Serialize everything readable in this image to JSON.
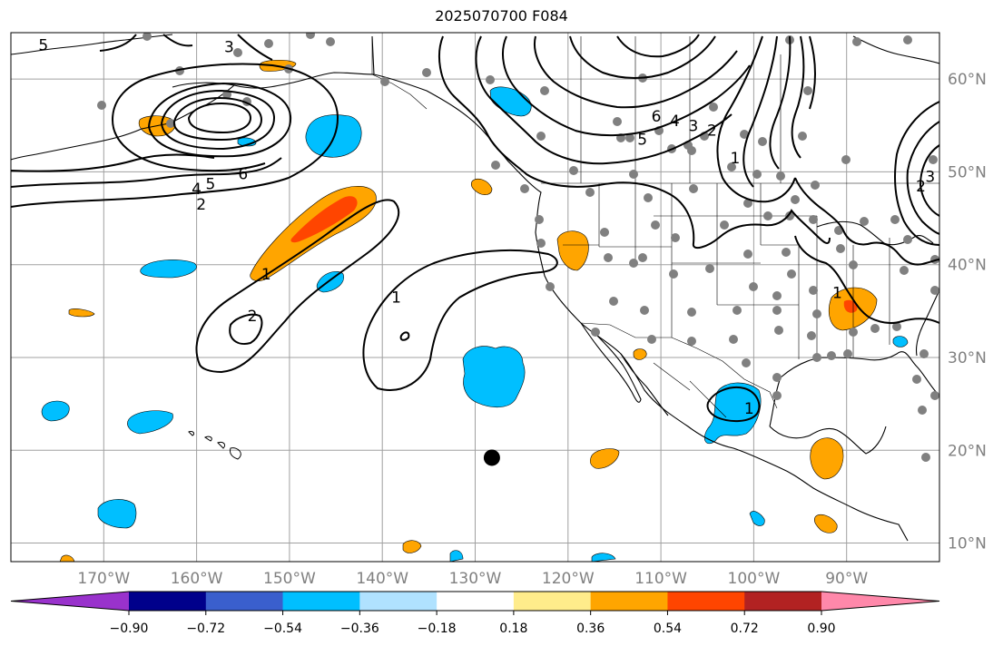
{
  "title": "2025070700 F084",
  "map": {
    "lon_min": -180,
    "lon_max": -80,
    "lat_min": 8,
    "lat_max": 65,
    "lon_ticks": [
      {
        "lon": -170,
        "label": "170°W"
      },
      {
        "lon": -160,
        "label": "160°W"
      },
      {
        "lon": -150,
        "label": "150°W"
      },
      {
        "lon": -140,
        "label": "140°W"
      },
      {
        "lon": -130,
        "label": "130°W"
      },
      {
        "lon": -120,
        "label": "120°W"
      },
      {
        "lon": -110,
        "label": "110°W"
      },
      {
        "lon": -100,
        "label": "100°W"
      },
      {
        "lon": -90,
        "label": "90°W"
      }
    ],
    "lat_ticks": [
      {
        "lat": 60,
        "label": "60°N"
      },
      {
        "lat": 50,
        "label": "50°N"
      },
      {
        "lat": 40,
        "label": "40°N"
      },
      {
        "lat": 30,
        "label": "30°N"
      },
      {
        "lat": 20,
        "label": "20°N"
      },
      {
        "lat": 10,
        "label": "10°N"
      }
    ],
    "grid": true,
    "contour_labels": [
      {
        "text": "5",
        "lon": -176.5,
        "lat": 63.7
      },
      {
        "text": "3",
        "lon": -156.5,
        "lat": 63.5
      },
      {
        "text": "6",
        "lon": -155,
        "lat": 49.8
      },
      {
        "text": "5",
        "lon": -158.5,
        "lat": 48.7
      },
      {
        "text": "4",
        "lon": -160,
        "lat": 48.2
      },
      {
        "text": "2",
        "lon": -159.5,
        "lat": 46.5
      },
      {
        "text": "1",
        "lon": -152.5,
        "lat": 39
      },
      {
        "text": "2",
        "lon": -154,
        "lat": 34.5
      },
      {
        "text": "1",
        "lon": -138.5,
        "lat": 36.5
      },
      {
        "text": "6",
        "lon": -110.5,
        "lat": 56
      },
      {
        "text": "5",
        "lon": -112,
        "lat": 53.5
      },
      {
        "text": "4",
        "lon": -108.5,
        "lat": 55.5
      },
      {
        "text": "3",
        "lon": -106.5,
        "lat": 55
      },
      {
        "text": "2",
        "lon": -104.5,
        "lat": 54.5
      },
      {
        "text": "1",
        "lon": -102,
        "lat": 51.5
      },
      {
        "text": "2",
        "lon": -82,
        "lat": 48.5
      },
      {
        "text": "3",
        "lon": -81,
        "lat": 49.5
      },
      {
        "text": "1",
        "lon": -91,
        "lat": 37
      },
      {
        "text": "1",
        "lon": -100.5,
        "lat": 24.5
      }
    ],
    "marker": {
      "lon": -128.2,
      "lat": 19.2,
      "label": ""
    }
  },
  "colorbar": {
    "colors": [
      "#9932cc",
      "#00008b",
      "#3a5fcd",
      "#00bfff",
      "#b0e2ff",
      "#ffffff",
      "#ffec8b",
      "#ffa500",
      "#ff4500",
      "#b22222",
      "#ff88aa"
    ],
    "tick_labels": [
      "−0.90",
      "−0.72",
      "−0.54",
      "−0.36",
      "−0.18",
      "0.18",
      "0.36",
      "0.54",
      "0.72",
      "0.90"
    ]
  }
}
